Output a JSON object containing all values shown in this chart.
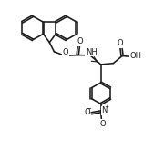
{
  "bg_color": "#ffffff",
  "line_color": "#1a1a1a",
  "line_width": 1.15,
  "figsize": [
    1.69,
    1.64
  ],
  "dpi": 100,
  "xlim": [
    0,
    10
  ],
  "ylim": [
    0,
    10
  ],
  "font_size": 6.0
}
